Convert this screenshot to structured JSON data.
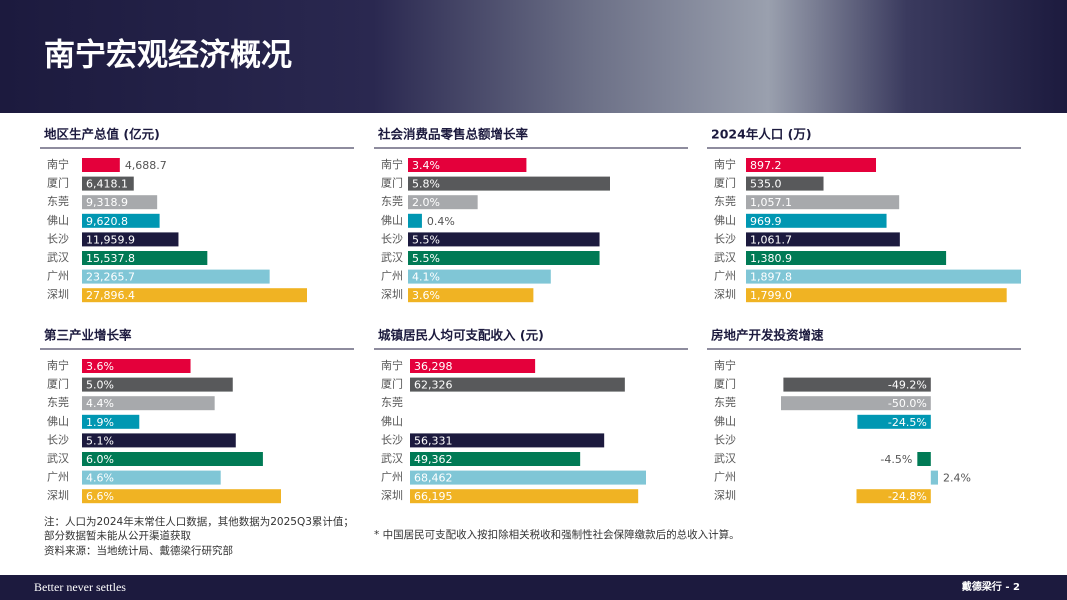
{
  "title": "南宁宏观经济概况",
  "notes": [
    "注：人口为2024年末常住人口数据，其他数据为2025Q3累计值；",
    "部分数据暂未能从公开渠道获取",
    "资料来源：当地统计局、戴德梁行研究部"
  ],
  "footnote": "* 中国居民可支配收入按扣除相关税收和强制性社会保障缴款后的总收入计算。",
  "footer": {
    "slogan": "Better never settles",
    "page": "戴德梁行 - 2"
  },
  "chart_data": [
    {
      "type": "bar",
      "orientation": "horizontal",
      "title": "地区生产总值 (亿元)",
      "categories": [
        "南宁",
        "厦门",
        "东莞",
        "佛山",
        "长沙",
        "武汉",
        "广州",
        "深圳"
      ],
      "values": [
        4688.7,
        6418.1,
        9318.9,
        9620.8,
        11959.9,
        15537.8,
        23265.7,
        27896.4
      ],
      "value_labels": [
        "4,688.7",
        "6,418.1",
        "9,318.9",
        "9,620.8",
        "11,959.9",
        "15,537.8",
        "23,265.7",
        "27,896.4"
      ],
      "colors": [
        "#e4003b",
        "#58595b",
        "#a7a9ac",
        "#0097b2",
        "#1c1a3e",
        "#007a55",
        "#80c6d6",
        "#f0b323"
      ]
    },
    {
      "type": "bar",
      "orientation": "horizontal",
      "title": "社会消费品零售总额增长率",
      "categories": [
        "南宁",
        "厦门",
        "东莞",
        "佛山",
        "长沙",
        "武汉",
        "广州",
        "深圳"
      ],
      "values": [
        3.4,
        5.8,
        2.0,
        0.4,
        5.5,
        5.5,
        4.1,
        3.6
      ],
      "value_labels": [
        "3.4%",
        "5.8%",
        "2.0%",
        "0.4%",
        "5.5%",
        "5.5%",
        "4.1%",
        "3.6%"
      ],
      "colors": [
        "#e4003b",
        "#58595b",
        "#a7a9ac",
        "#0097b2",
        "#1c1a3e",
        "#007a55",
        "#80c6d6",
        "#f0b323"
      ]
    },
    {
      "type": "bar",
      "orientation": "horizontal",
      "title": "2024年人口 (万)",
      "categories": [
        "南宁",
        "厦门",
        "东莞",
        "佛山",
        "长沙",
        "武汉",
        "广州",
        "深圳"
      ],
      "values": [
        897.2,
        535.0,
        1057.1,
        969.9,
        1061.7,
        1380.9,
        1897.8,
        1799.0
      ],
      "value_labels": [
        "897.2",
        "535.0",
        "1,057.1",
        "969.9",
        "1,061.7",
        "1,380.9",
        "1,897.8",
        "1,799.0"
      ],
      "colors": [
        "#e4003b",
        "#58595b",
        "#a7a9ac",
        "#0097b2",
        "#1c1a3e",
        "#007a55",
        "#80c6d6",
        "#f0b323"
      ]
    },
    {
      "type": "bar",
      "orientation": "horizontal",
      "title": "第三产业增长率",
      "categories": [
        "南宁",
        "厦门",
        "东莞",
        "佛山",
        "长沙",
        "武汉",
        "广州",
        "深圳"
      ],
      "values": [
        3.6,
        5.0,
        4.4,
        1.9,
        5.1,
        6.0,
        4.6,
        6.6
      ],
      "value_labels": [
        "3.6%",
        "5.0%",
        "4.4%",
        "1.9%",
        "5.1%",
        "6.0%",
        "4.6%",
        "6.6%"
      ],
      "colors": [
        "#e4003b",
        "#58595b",
        "#a7a9ac",
        "#0097b2",
        "#1c1a3e",
        "#007a55",
        "#80c6d6",
        "#f0b323"
      ]
    },
    {
      "type": "bar",
      "orientation": "horizontal",
      "title": "城镇居民人均可支配收入 (元)",
      "categories": [
        "南宁",
        "厦门",
        "东莞",
        "佛山",
        "长沙",
        "武汉",
        "广州",
        "深圳"
      ],
      "values": [
        36298,
        62326,
        null,
        null,
        56331,
        49362,
        68462,
        66195
      ],
      "value_labels": [
        "36,298",
        "62,326",
        null,
        null,
        "56,331",
        "49,362",
        "68,462",
        "66,195"
      ],
      "colors": [
        "#e4003b",
        "#58595b",
        "#a7a9ac",
        "#0097b2",
        "#1c1a3e",
        "#007a55",
        "#80c6d6",
        "#f0b323"
      ]
    },
    {
      "type": "bar",
      "orientation": "horizontal",
      "title": "房地产开发投资增速",
      "categories": [
        "南宁",
        "厦门",
        "东莞",
        "佛山",
        "长沙",
        "武汉",
        "广州",
        "深圳"
      ],
      "values": [
        null,
        -49.2,
        -50.0,
        -24.5,
        null,
        -4.5,
        2.4,
        -24.8
      ],
      "value_labels": [
        null,
        "-49.2%",
        "-50.0%",
        "-24.5%",
        null,
        "-4.5%",
        "2.4%",
        "-24.8%"
      ],
      "colors": [
        "#e4003b",
        "#58595b",
        "#a7a9ac",
        "#0097b2",
        "#1c1a3e",
        "#007a55",
        "#80c6d6",
        "#f0b323"
      ]
    }
  ]
}
